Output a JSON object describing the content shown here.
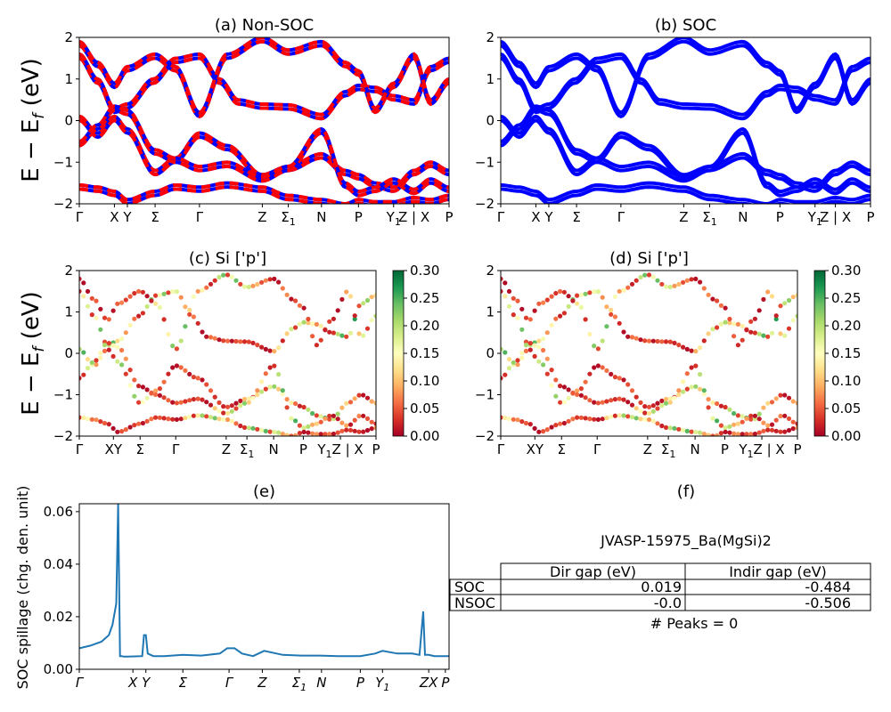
{
  "figure": {
    "title_a": "(a) Non-SOC",
    "title_b": "(b) SOC",
    "title_c": "(c)  Si ['p']",
    "title_d": "(d) Si ['p']",
    "title_e": "(e)",
    "title_f": "(f)",
    "ylabel_band": "E − E_f (eV)",
    "ylabel_spillage": "SOC spillage (chg. den. unit)"
  },
  "chart_data": [
    {
      "id": "a",
      "type": "line",
      "title": "(a) Non-SOC",
      "ylabel": "E − E_f (eV)",
      "ylim": [
        -2,
        2
      ],
      "yticks": [
        "−2",
        "−1",
        "0",
        "1",
        "2"
      ],
      "xticks": [
        "Γ",
        "X",
        "Y",
        "Σ",
        "Γ",
        "Z",
        "Σ1",
        "N",
        "P",
        "Y1",
        "Z | X",
        "P"
      ],
      "xtick_positions": [
        0,
        0.095,
        0.13,
        0.205,
        0.325,
        0.495,
        0.565,
        0.655,
        0.755,
        0.85,
        0.905,
        1.0
      ],
      "series_color": "#0000ff",
      "overlay_color": "#ff0000",
      "bands": [
        [
          [
            0,
            1.5
          ],
          [
            0.05,
            0.9
          ],
          [
            0.095,
            0.2
          ],
          [
            0.13,
            0.3
          ],
          [
            0.2,
            0.9
          ],
          [
            0.26,
            1.4
          ],
          [
            0.325,
            1.5
          ],
          [
            0.38,
            0.9
          ],
          [
            0.43,
            0.4
          ],
          [
            0.495,
            0.3
          ],
          [
            0.565,
            0.28
          ],
          [
            0.655,
            0.05
          ],
          [
            0.72,
            0.6
          ],
          [
            0.755,
            0.75
          ],
          [
            0.8,
            0.7
          ],
          [
            0.85,
            0.5
          ],
          [
            0.905,
            0.4
          ],
          [
            0.95,
            1.2
          ],
          [
            1.0,
            1.4
          ]
        ],
        [
          [
            0,
            0.1
          ],
          [
            0.05,
            -0.3
          ],
          [
            0.095,
            0.1
          ],
          [
            0.13,
            -0.2
          ],
          [
            0.205,
            -1.2
          ],
          [
            0.26,
            -0.9
          ],
          [
            0.325,
            -0.3
          ],
          [
            0.4,
            -0.6
          ],
          [
            0.495,
            -1.3
          ],
          [
            0.565,
            -1.1
          ],
          [
            0.655,
            -0.8
          ],
          [
            0.72,
            -1.2
          ],
          [
            0.755,
            -1.3
          ],
          [
            0.8,
            -1.5
          ],
          [
            0.85,
            -1.6
          ],
          [
            0.905,
            -1.2
          ],
          [
            0.95,
            -1.0
          ],
          [
            1.0,
            -1.2
          ]
        ],
        [
          [
            0,
            -0.6
          ],
          [
            0.05,
            -0.2
          ],
          [
            0.095,
            0.25
          ],
          [
            0.13,
            0.15
          ],
          [
            0.205,
            -0.8
          ],
          [
            0.26,
            -1.0
          ],
          [
            0.325,
            -1.2
          ],
          [
            0.4,
            -1.1
          ],
          [
            0.495,
            -1.45
          ],
          [
            0.565,
            -1.2
          ],
          [
            0.655,
            -0.3
          ],
          [
            0.72,
            -1.6
          ],
          [
            0.755,
            -1.8
          ],
          [
            0.8,
            -1.7
          ],
          [
            0.85,
            -1.5
          ],
          [
            0.905,
            -1.75
          ],
          [
            0.95,
            -1.5
          ],
          [
            1.0,
            -1.7
          ]
        ],
        [
          [
            0,
            -1.55
          ],
          [
            0.05,
            -1.6
          ],
          [
            0.095,
            -1.7
          ],
          [
            0.13,
            -1.9
          ],
          [
            0.205,
            -1.7
          ],
          [
            0.26,
            -1.55
          ],
          [
            0.325,
            -1.6
          ],
          [
            0.4,
            -1.5
          ],
          [
            0.495,
            -1.6
          ],
          [
            0.565,
            -1.8
          ],
          [
            0.655,
            -1.9
          ],
          [
            0.72,
            -2.0
          ],
          [
            0.755,
            -1.9
          ],
          [
            0.8,
            -1.95
          ],
          [
            0.85,
            -1.95
          ],
          [
            0.905,
            -1.85
          ],
          [
            0.95,
            -1.9
          ],
          [
            1.0,
            -1.8
          ]
        ],
        [
          [
            0,
            1.8
          ],
          [
            0.05,
            1.3
          ],
          [
            0.095,
            0.8
          ],
          [
            0.13,
            1.2
          ],
          [
            0.205,
            1.5
          ],
          [
            0.26,
            1.2
          ],
          [
            0.325,
            0.1
          ],
          [
            0.4,
            1.5
          ],
          [
            0.495,
            1.9
          ],
          [
            0.565,
            1.6
          ],
          [
            0.655,
            1.8
          ],
          [
            0.72,
            1.3
          ],
          [
            0.755,
            1.1
          ],
          [
            0.8,
            0.2
          ],
          [
            0.85,
            0.8
          ],
          [
            0.905,
            1.5
          ],
          [
            0.95,
            0.4
          ],
          [
            1.0,
            0.9
          ]
        ]
      ]
    },
    {
      "id": "b",
      "type": "line",
      "title": "(b) SOC",
      "ylim": [
        -2,
        2
      ],
      "yticks": [
        "−2",
        "−1",
        "0",
        "1",
        "2"
      ],
      "xticks": [
        "Γ",
        "X",
        "Y",
        "Σ",
        "Γ",
        "Z",
        "Σ1",
        "N",
        "P",
        "Y1",
        "Z | X",
        "P"
      ],
      "xtick_positions": [
        0,
        0.095,
        0.13,
        0.205,
        0.325,
        0.495,
        0.565,
        0.655,
        0.755,
        0.85,
        0.905,
        1.0
      ],
      "series_color": "#0000ff",
      "bands": [
        [
          [
            0,
            1.5
          ],
          [
            0.05,
            0.9
          ],
          [
            0.095,
            0.2
          ],
          [
            0.13,
            0.3
          ],
          [
            0.2,
            0.9
          ],
          [
            0.26,
            1.4
          ],
          [
            0.325,
            1.5
          ],
          [
            0.38,
            0.9
          ],
          [
            0.43,
            0.4
          ],
          [
            0.495,
            0.3
          ],
          [
            0.565,
            0.28
          ],
          [
            0.655,
            0.05
          ],
          [
            0.72,
            0.6
          ],
          [
            0.755,
            0.75
          ],
          [
            0.8,
            0.7
          ],
          [
            0.85,
            0.5
          ],
          [
            0.905,
            0.4
          ],
          [
            0.95,
            1.2
          ],
          [
            1.0,
            1.4
          ]
        ],
        [
          [
            0,
            0.1
          ],
          [
            0.05,
            -0.3
          ],
          [
            0.095,
            0.1
          ],
          [
            0.13,
            -0.2
          ],
          [
            0.205,
            -1.2
          ],
          [
            0.26,
            -0.9
          ],
          [
            0.325,
            -0.3
          ],
          [
            0.4,
            -0.6
          ],
          [
            0.495,
            -1.3
          ],
          [
            0.565,
            -1.1
          ],
          [
            0.655,
            -0.8
          ],
          [
            0.72,
            -1.2
          ],
          [
            0.755,
            -1.3
          ],
          [
            0.8,
            -1.5
          ],
          [
            0.85,
            -1.6
          ],
          [
            0.905,
            -1.2
          ],
          [
            0.95,
            -1.0
          ],
          [
            1.0,
            -1.2
          ]
        ],
        [
          [
            0,
            -0.6
          ],
          [
            0.05,
            -0.2
          ],
          [
            0.095,
            0.25
          ],
          [
            0.13,
            0.15
          ],
          [
            0.205,
            -0.8
          ],
          [
            0.26,
            -1.0
          ],
          [
            0.325,
            -1.2
          ],
          [
            0.4,
            -1.1
          ],
          [
            0.495,
            -1.45
          ],
          [
            0.565,
            -1.2
          ],
          [
            0.655,
            -0.3
          ],
          [
            0.72,
            -1.6
          ],
          [
            0.755,
            -1.8
          ],
          [
            0.8,
            -1.7
          ],
          [
            0.85,
            -1.5
          ],
          [
            0.905,
            -1.75
          ],
          [
            0.95,
            -1.5
          ],
          [
            1.0,
            -1.7
          ]
        ],
        [
          [
            0,
            -1.55
          ],
          [
            0.05,
            -1.6
          ],
          [
            0.095,
            -1.7
          ],
          [
            0.13,
            -1.9
          ],
          [
            0.205,
            -1.7
          ],
          [
            0.26,
            -1.55
          ],
          [
            0.325,
            -1.6
          ],
          [
            0.4,
            -1.5
          ],
          [
            0.495,
            -1.6
          ],
          [
            0.565,
            -1.8
          ],
          [
            0.655,
            -1.9
          ],
          [
            0.72,
            -2.0
          ],
          [
            0.755,
            -1.9
          ],
          [
            0.8,
            -1.95
          ],
          [
            0.85,
            -1.95
          ],
          [
            0.905,
            -1.85
          ],
          [
            0.95,
            -1.9
          ],
          [
            1.0,
            -1.8
          ]
        ],
        [
          [
            0,
            1.8
          ],
          [
            0.05,
            1.3
          ],
          [
            0.095,
            0.8
          ],
          [
            0.13,
            1.2
          ],
          [
            0.205,
            1.5
          ],
          [
            0.26,
            1.2
          ],
          [
            0.325,
            0.1
          ],
          [
            0.4,
            1.5
          ],
          [
            0.495,
            1.9
          ],
          [
            0.565,
            1.6
          ],
          [
            0.655,
            1.8
          ],
          [
            0.72,
            1.3
          ],
          [
            0.755,
            1.1
          ],
          [
            0.8,
            0.2
          ],
          [
            0.85,
            0.8
          ],
          [
            0.905,
            1.5
          ],
          [
            0.95,
            0.4
          ],
          [
            1.0,
            0.9
          ]
        ]
      ]
    },
    {
      "id": "c",
      "type": "scatter",
      "title": "(c)  Si ['p']",
      "ylabel": "E − E_f (eV)",
      "ylim": [
        -2,
        2
      ],
      "yticks": [
        "−2",
        "−1",
        "0",
        "1",
        "2"
      ],
      "xticks": [
        "Γ",
        "XY",
        "Σ",
        "Γ",
        "Z",
        "Σ1",
        "N",
        "P",
        "Y1Z | X",
        "P"
      ],
      "xtick_positions": [
        0,
        0.115,
        0.205,
        0.325,
        0.495,
        0.565,
        0.655,
        0.755,
        0.88,
        1.0
      ],
      "colorbar": {
        "min": 0.0,
        "max": 0.3,
        "ticks": [
          "0.00",
          "0.05",
          "0.10",
          "0.15",
          "0.20",
          "0.25",
          "0.30"
        ]
      },
      "weights": [
        0.03,
        0.2,
        0.25,
        0.04,
        0.18,
        0.28,
        0.05,
        0.22,
        0.26,
        0.12,
        0.16,
        0.08,
        0.14,
        0.06,
        0.02
      ]
    },
    {
      "id": "d",
      "type": "scatter",
      "title": "(d) Si ['p']",
      "ylim": [
        -2,
        2
      ],
      "yticks": [
        "−2",
        "−1",
        "0",
        "1",
        "2"
      ],
      "xticks": [
        "Γ",
        "XY",
        "Σ",
        "Γ",
        "Z",
        "Σ1",
        "N",
        "P",
        "Y1Z | X",
        "P"
      ],
      "xtick_positions": [
        0,
        0.115,
        0.205,
        0.325,
        0.495,
        0.565,
        0.655,
        0.755,
        0.88,
        1.0
      ],
      "colorbar": {
        "min": 0.0,
        "max": 0.3,
        "ticks": [
          "0.00",
          "0.05",
          "0.10",
          "0.15",
          "0.20",
          "0.25",
          "0.30"
        ]
      }
    },
    {
      "id": "e",
      "type": "line",
      "title": "(e)",
      "ylabel": "SOC spillage (chg. den. unit)",
      "ylim": [
        0,
        0.063
      ],
      "yticks": [
        "0.00",
        "0.02",
        "0.04",
        "0.06"
      ],
      "ytick_values": [
        0,
        0.02,
        0.04,
        0.06
      ],
      "xticks": [
        "Γ",
        "X",
        "Y",
        "Σ",
        "Γ",
        "Z",
        "Σ1",
        "N",
        "P",
        "Y1",
        "ZX",
        "P"
      ],
      "xtick_positions": [
        0,
        0.145,
        0.18,
        0.28,
        0.405,
        0.495,
        0.595,
        0.655,
        0.76,
        0.82,
        0.945,
        0.99
      ],
      "series_color": "#1f77b4",
      "x": [
        0,
        0.03,
        0.06,
        0.08,
        0.09,
        0.1,
        0.105,
        0.11,
        0.115,
        0.12,
        0.13,
        0.15,
        0.17,
        0.175,
        0.18,
        0.185,
        0.2,
        0.23,
        0.28,
        0.33,
        0.38,
        0.4,
        0.41,
        0.42,
        0.44,
        0.47,
        0.5,
        0.55,
        0.6,
        0.65,
        0.7,
        0.76,
        0.8,
        0.82,
        0.86,
        0.9,
        0.92,
        0.93,
        0.935,
        0.945,
        0.96,
        0.975,
        1.0
      ],
      "y": [
        0.008,
        0.009,
        0.0105,
        0.013,
        0.017,
        0.025,
        0.063,
        0.005,
        0.005,
        0.0048,
        0.0048,
        0.0049,
        0.005,
        0.013,
        0.013,
        0.006,
        0.005,
        0.005,
        0.0055,
        0.0052,
        0.006,
        0.008,
        0.008,
        0.008,
        0.006,
        0.005,
        0.007,
        0.0055,
        0.0052,
        0.0052,
        0.005,
        0.005,
        0.006,
        0.007,
        0.006,
        0.006,
        0.0055,
        0.022,
        0.0055,
        0.0055,
        0.005,
        0.005,
        0.005
      ]
    }
  ],
  "table": {
    "id_label": "JVASP-15975_Ba(MgSi)2",
    "col_headers": [
      "",
      "Dir gap (eV)",
      "Indir gap (eV)"
    ],
    "rows": [
      {
        "label": "SOC",
        "dir": "0.019",
        "indir": "-0.484"
      },
      {
        "label": "NSOC",
        "dir": "-0.0",
        "indir": "-0.506"
      }
    ],
    "peaks": "# Peaks = 0"
  }
}
